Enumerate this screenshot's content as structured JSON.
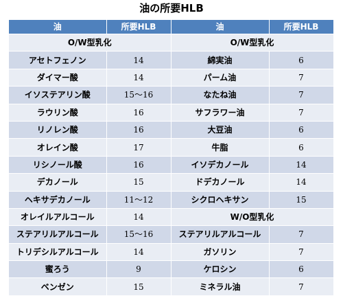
{
  "title": "油の所要HLB",
  "headers": [
    "油",
    "所要HLB",
    "油",
    "所要HLB"
  ],
  "sections": {
    "ow": "O/W型乳化",
    "wo": "W/O型乳化"
  },
  "left_rows": [
    {
      "oil": "アセトフェノン",
      "hlb": "14"
    },
    {
      "oil": "ダイマー酸",
      "hlb": "14"
    },
    {
      "oil": "イソステアリン酸",
      "hlb": "15～16"
    },
    {
      "oil": "ラウリン酸",
      "hlb": "16"
    },
    {
      "oil": "リノレン酸",
      "hlb": "16"
    },
    {
      "oil": "オレイン酸",
      "hlb": "17"
    },
    {
      "oil": "リシノール酸",
      "hlb": "16"
    },
    {
      "oil": "デカノール",
      "hlb": "15"
    },
    {
      "oil": "ヘキサデカノール",
      "hlb": "11～12"
    },
    {
      "oil": "オレイルアルコール",
      "hlb": "14"
    },
    {
      "oil": "ステアリルアルコール",
      "hlb": "15～16"
    },
    {
      "oil": "トリデシルアルコール",
      "hlb": "14"
    },
    {
      "oil": "蜜ろう",
      "hlb": "9"
    },
    {
      "oil": "ベンゼン",
      "hlb": "15"
    }
  ],
  "right_ow_rows": [
    {
      "oil": "綿実油",
      "hlb": "6"
    },
    {
      "oil": "パーム油",
      "hlb": "7"
    },
    {
      "oil": "なたね油",
      "hlb": "7"
    },
    {
      "oil": "サフラワー油",
      "hlb": "7"
    },
    {
      "oil": "大豆油",
      "hlb": "6"
    },
    {
      "oil": "牛脂",
      "hlb": "6"
    },
    {
      "oil": "イソデカノール",
      "hlb": "14"
    },
    {
      "oil": "ドデカノール",
      "hlb": "14"
    },
    {
      "oil": "シクロヘキサン",
      "hlb": "15"
    }
  ],
  "right_wo_rows": [
    {
      "oil": "ステアリルアルコール",
      "hlb": "7"
    },
    {
      "oil": "ガソリン",
      "hlb": "7"
    },
    {
      "oil": "ケロシン",
      "hlb": "6"
    },
    {
      "oil": "ミネラル油",
      "hlb": "7"
    }
  ]
}
